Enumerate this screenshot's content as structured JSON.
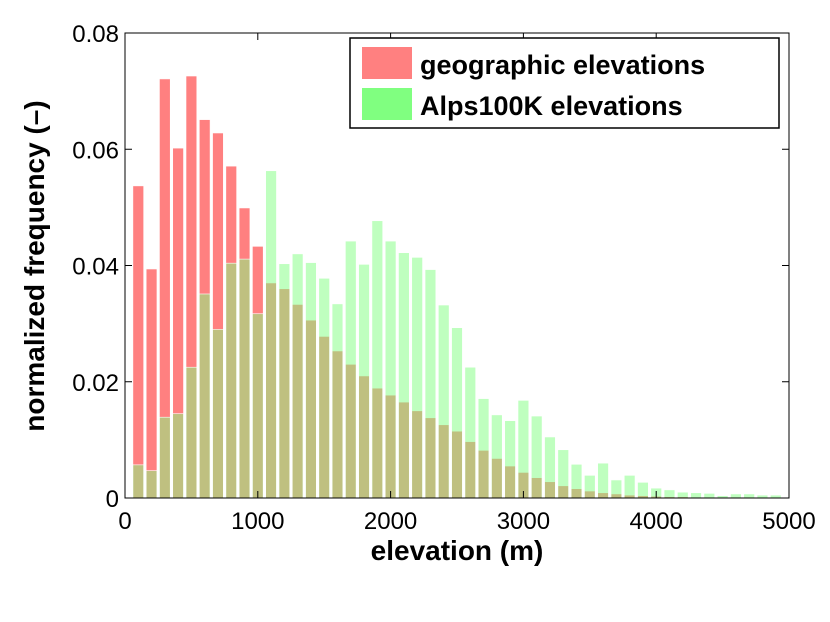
{
  "chart_data": {
    "type": "bar",
    "title": "",
    "xlabel": "elevation (m)",
    "ylabel": "normalized frequency (–)",
    "xlim": [
      0,
      5000
    ],
    "ylim": [
      0,
      0.08
    ],
    "xticks": [
      0,
      1000,
      2000,
      3000,
      4000,
      5000
    ],
    "xtick_labels": [
      "0",
      "1000",
      "2000",
      "3000",
      "4000",
      "5000"
    ],
    "yticks": [
      0,
      0.02,
      0.04,
      0.06,
      0.08
    ],
    "ytick_labels": [
      "0",
      "0.02",
      "0.04",
      "0.06",
      "0.08"
    ],
    "bin_width": 100,
    "bin_centers": [
      100,
      200,
      300,
      400,
      500,
      600,
      700,
      800,
      900,
      1000,
      1100,
      1200,
      1300,
      1400,
      1500,
      1600,
      1700,
      1800,
      1900,
      2000,
      2100,
      2200,
      2300,
      2400,
      2500,
      2600,
      2700,
      2800,
      2900,
      3000,
      3100,
      3200,
      3300,
      3400,
      3500,
      3600,
      3700,
      3800,
      3900,
      4000,
      4100,
      4200,
      4300,
      4400,
      4500,
      4600,
      4700,
      4800,
      4900
    ],
    "legend_position": "top-right",
    "series": [
      {
        "name": "geographic elevations",
        "color": "#ff8080",
        "values": [
          0.0537,
          0.0394,
          0.0721,
          0.0602,
          0.0726,
          0.0651,
          0.0628,
          0.0571,
          0.0499,
          0.0433,
          0.037,
          0.036,
          0.0333,
          0.0306,
          0.0278,
          0.0253,
          0.023,
          0.021,
          0.0189,
          0.0177,
          0.0165,
          0.015,
          0.0138,
          0.0126,
          0.0115,
          0.0097,
          0.0082,
          0.0068,
          0.0055,
          0.0044,
          0.0035,
          0.0028,
          0.0021,
          0.0016,
          0.0012,
          0.0009,
          0.0007,
          0.0005,
          0.0004,
          0.0003,
          0.0002,
          0.0002,
          0.0001,
          0.0001,
          0.0001,
          0.0001,
          0.0001,
          0.0,
          0.0
        ]
      },
      {
        "name": "Alps100K elevations",
        "color": "#80ff80",
        "values": [
          0.0057,
          0.0047,
          0.0139,
          0.0145,
          0.0225,
          0.0351,
          0.029,
          0.0404,
          0.0411,
          0.0317,
          0.0563,
          0.0403,
          0.042,
          0.0405,
          0.0378,
          0.0334,
          0.0442,
          0.0402,
          0.0477,
          0.0442,
          0.0422,
          0.0414,
          0.0393,
          0.0332,
          0.0293,
          0.0225,
          0.0171,
          0.0143,
          0.0133,
          0.0168,
          0.0141,
          0.0105,
          0.0083,
          0.0058,
          0.0039,
          0.006,
          0.0031,
          0.0039,
          0.0027,
          0.0017,
          0.0014,
          0.001,
          0.0009,
          0.0008,
          0.0004,
          0.0007,
          0.0007,
          0.0005,
          0.0005
        ]
      }
    ]
  }
}
